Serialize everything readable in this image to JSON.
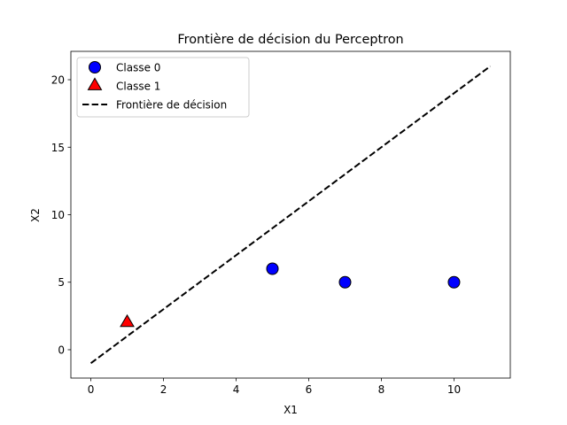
{
  "chart_data": {
    "type": "scatter",
    "title": "Frontière de décision du Perceptron",
    "xlabel": "X1",
    "ylabel": "X2",
    "xlim": [
      -0.55,
      11.55
    ],
    "ylim": [
      -2.1,
      22.1
    ],
    "xticks": [
      0,
      2,
      4,
      6,
      8,
      10
    ],
    "yticks": [
      0,
      5,
      10,
      15,
      20
    ],
    "grid": false,
    "legend_position": "top-left",
    "series": [
      {
        "name": "Classe 0",
        "marker": "circle",
        "color": "#0000ff",
        "points": [
          {
            "x": 5,
            "y": 6
          },
          {
            "x": 7,
            "y": 5
          },
          {
            "x": 10,
            "y": 5
          }
        ]
      },
      {
        "name": "Classe 1",
        "marker": "triangle",
        "color": "#ff0000",
        "points": [
          {
            "x": 1,
            "y": 2
          }
        ]
      },
      {
        "name": "Frontière de décision",
        "marker": "dashed-line",
        "color": "#000000",
        "points": [
          {
            "x": 0,
            "y": -1
          },
          {
            "x": 11,
            "y": 21
          }
        ]
      }
    ]
  }
}
